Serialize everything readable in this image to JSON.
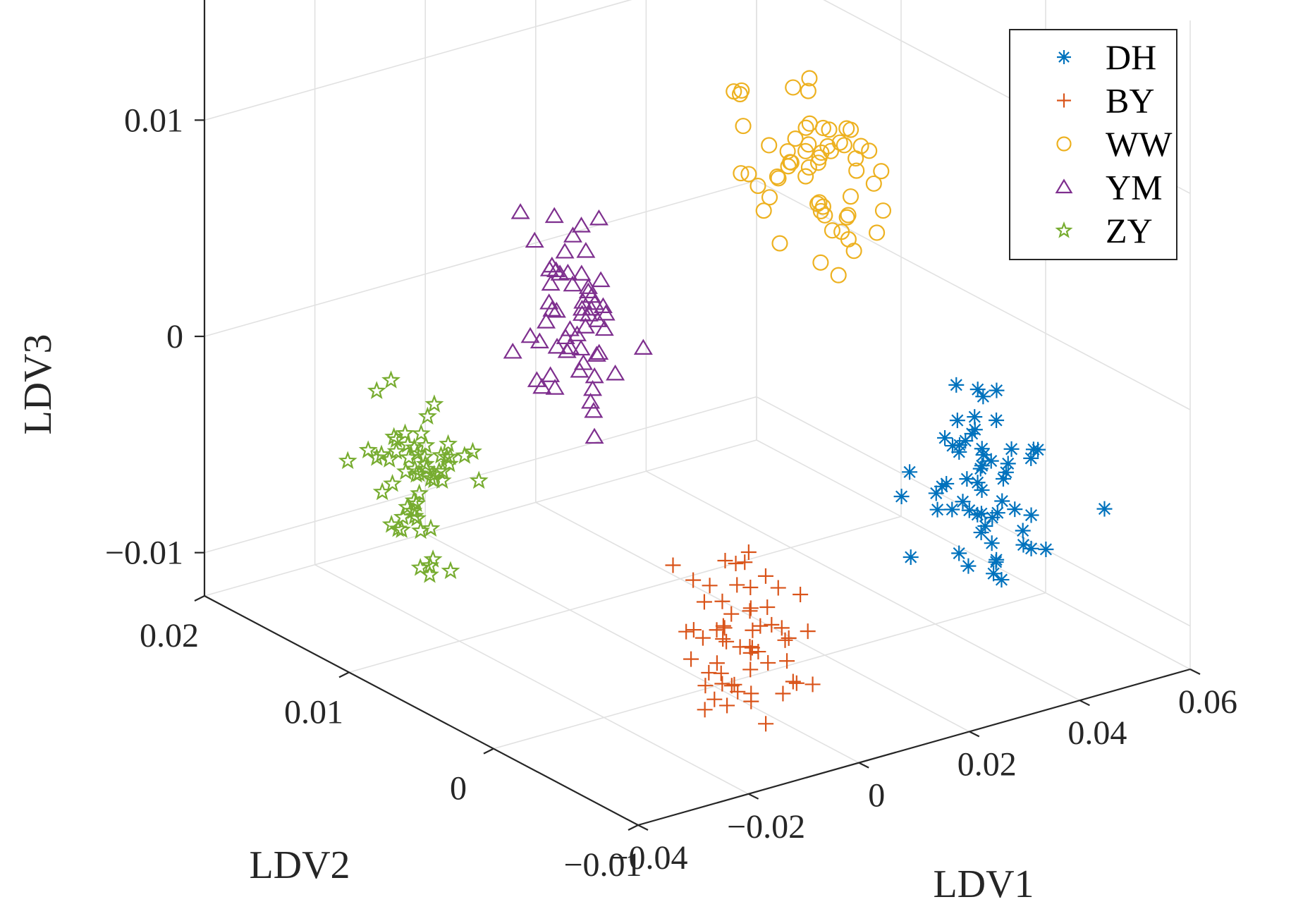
{
  "chart_data": {
    "type": "scatter",
    "projection": "3d",
    "title": "",
    "xlabel": "LDV1",
    "ylabel": "LDV2",
    "zlabel": "LDV3",
    "xlim": [
      -0.04,
      0.06
    ],
    "ylim": [
      -0.01,
      0.02
    ],
    "zlim": [
      -0.012,
      0.018
    ],
    "xticks": [
      -0.04,
      -0.02,
      0,
      0.02,
      0.04,
      0.06
    ],
    "xtick_labels": [
      "−0.04",
      "−0.02",
      "0",
      "0.02",
      "0.04",
      "0.06"
    ],
    "yticks": [
      -0.01,
      0,
      0.01,
      0.02
    ],
    "ytick_labels": [
      "−0.01",
      "0",
      "0.01",
      "0.02"
    ],
    "zticks": [
      -0.01,
      0,
      0.01
    ],
    "ztick_labels": [
      "−0.01",
      "0",
      "0.01"
    ],
    "grid": true,
    "legend_position": "top-right",
    "series": [
      {
        "name": "DH",
        "marker": "asterisk",
        "color": "#0072BD",
        "center": [
          0.045,
          -0.002,
          -0.005
        ],
        "spread": [
          0.007,
          0.004,
          0.004
        ],
        "count": 60,
        "seed": 11
      },
      {
        "name": "BY",
        "marker": "plus",
        "color": "#D95319",
        "center": [
          -0.015,
          -0.008,
          -0.006
        ],
        "spread": [
          0.006,
          0.003,
          0.003
        ],
        "count": 60,
        "seed": 23
      },
      {
        "name": "WW",
        "marker": "circle",
        "color": "#EDB120",
        "center": [
          0.035,
          0.006,
          0.007
        ],
        "spread": [
          0.006,
          0.004,
          0.0035
        ],
        "count": 60,
        "seed": 37
      },
      {
        "name": "YM",
        "marker": "triangle",
        "color": "#7E2F8E",
        "center": [
          -0.013,
          0.005,
          0.0045
        ],
        "spread": [
          0.005,
          0.003,
          0.004
        ],
        "count": 60,
        "seed": 41
      },
      {
        "name": "ZY",
        "marker": "pentagram",
        "color": "#77AC30",
        "center": [
          -0.03,
          0.009,
          -0.003
        ],
        "spread": [
          0.006,
          0.003,
          0.003
        ],
        "count": 60,
        "seed": 53
      }
    ]
  }
}
